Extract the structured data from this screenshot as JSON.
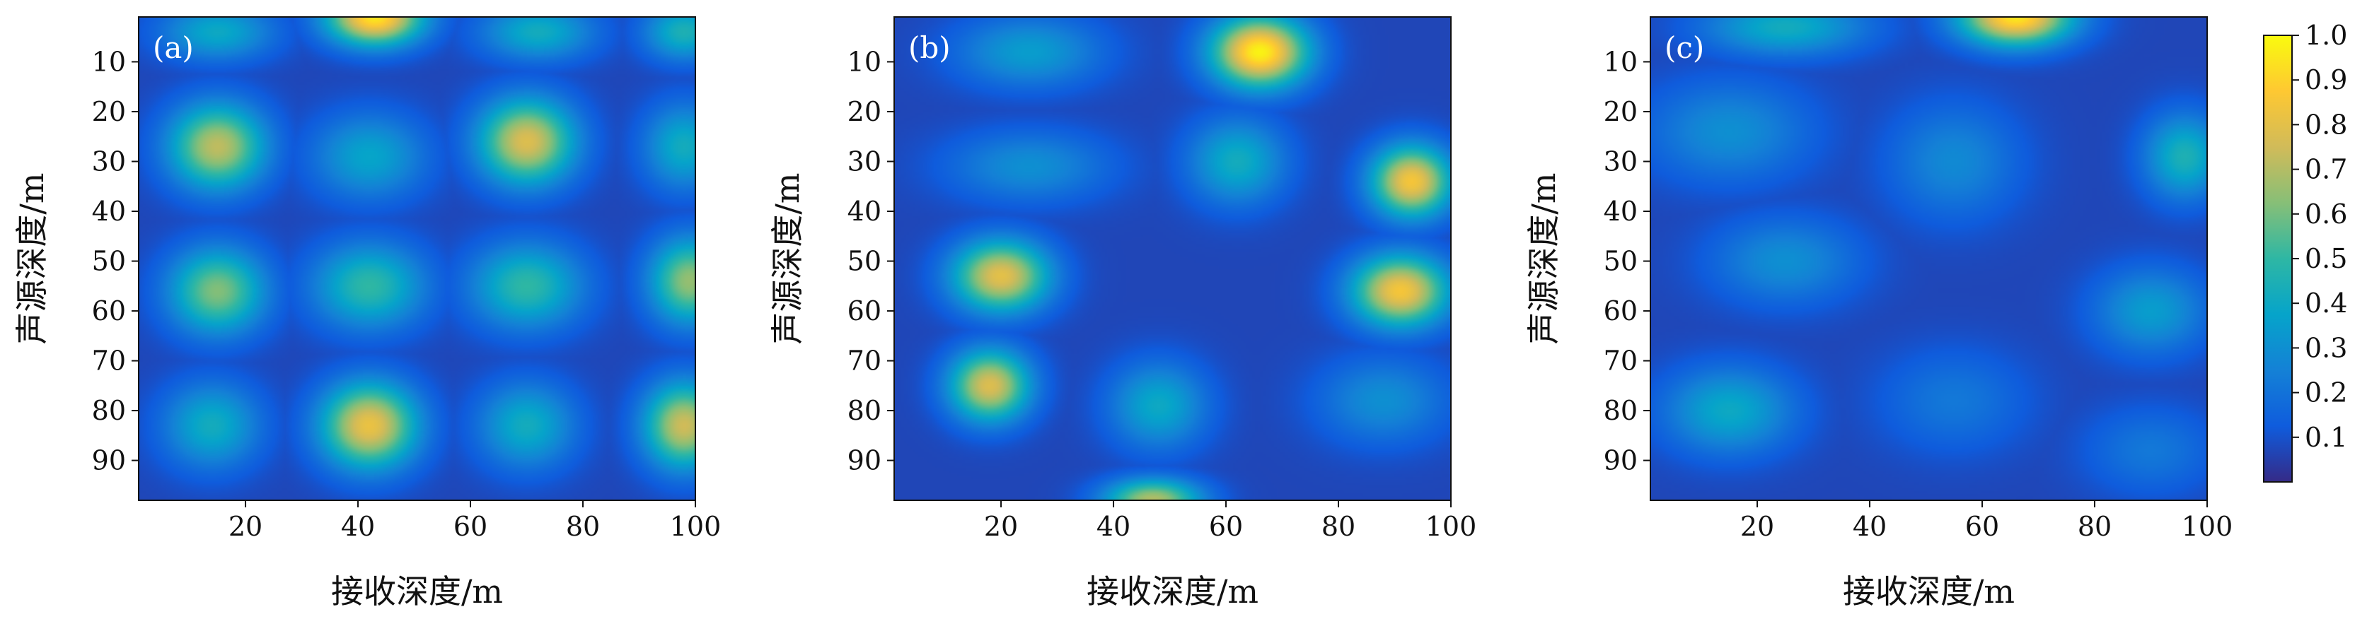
{
  "chart_data": [
    {
      "type": "heatmap",
      "panel_label": "(a)",
      "xlabel": "接收深度/m",
      "ylabel": "声源深度/m",
      "xlim": [
        1,
        100
      ],
      "ylim": [
        1,
        98
      ],
      "xticks": [
        20,
        40,
        60,
        80,
        100
      ],
      "yticks": [
        10,
        20,
        30,
        40,
        50,
        60,
        70,
        80,
        90
      ],
      "peaks": [
        {
          "x": 43,
          "y": 1,
          "v": 0.95,
          "sx": 6,
          "sy": 4
        },
        {
          "x": 15,
          "y": 27,
          "v": 0.72,
          "sx": 6,
          "sy": 6
        },
        {
          "x": 42,
          "y": 29,
          "v": 0.38,
          "sx": 7,
          "sy": 6
        },
        {
          "x": 70,
          "y": 26,
          "v": 0.78,
          "sx": 6,
          "sy": 6
        },
        {
          "x": 98,
          "y": 27,
          "v": 0.42,
          "sx": 5,
          "sy": 6
        },
        {
          "x": 15,
          "y": 56,
          "v": 0.62,
          "sx": 6,
          "sy": 6
        },
        {
          "x": 42,
          "y": 55,
          "v": 0.5,
          "sx": 7,
          "sy": 6
        },
        {
          "x": 70,
          "y": 55,
          "v": 0.5,
          "sx": 7,
          "sy": 6
        },
        {
          "x": 99,
          "y": 54,
          "v": 0.65,
          "sx": 5,
          "sy": 6
        },
        {
          "x": 14,
          "y": 83,
          "v": 0.42,
          "sx": 6,
          "sy": 6
        },
        {
          "x": 42,
          "y": 83,
          "v": 0.82,
          "sx": 6,
          "sy": 6
        },
        {
          "x": 70,
          "y": 83,
          "v": 0.42,
          "sx": 6,
          "sy": 6
        },
        {
          "x": 98,
          "y": 83,
          "v": 0.75,
          "sx": 5,
          "sy": 6
        },
        {
          "x": 15,
          "y": 4,
          "v": 0.4,
          "sx": 7,
          "sy": 4
        },
        {
          "x": 72,
          "y": 4,
          "v": 0.42,
          "sx": 7,
          "sy": 4
        },
        {
          "x": 98,
          "y": 4,
          "v": 0.45,
          "sx": 5,
          "sy": 4
        }
      ]
    },
    {
      "type": "heatmap",
      "panel_label": "(b)",
      "xlabel": "接收深度/m",
      "ylabel": "声源深度/m",
      "xlim": [
        1,
        100
      ],
      "ylim": [
        1,
        98
      ],
      "xticks": [
        20,
        40,
        60,
        80,
        100
      ],
      "yticks": [
        10,
        20,
        30,
        40,
        50,
        60,
        70,
        80,
        90
      ],
      "peaks": [
        {
          "x": 66,
          "y": 8,
          "v": 0.98,
          "sx": 6,
          "sy": 5
        },
        {
          "x": 25,
          "y": 8,
          "v": 0.35,
          "sx": 9,
          "sy": 5
        },
        {
          "x": 93,
          "y": 34,
          "v": 0.85,
          "sx": 5,
          "sy": 5
        },
        {
          "x": 62,
          "y": 30,
          "v": 0.42,
          "sx": 6,
          "sy": 6
        },
        {
          "x": 25,
          "y": 31,
          "v": 0.3,
          "sx": 10,
          "sy": 5
        },
        {
          "x": 20,
          "y": 53,
          "v": 0.8,
          "sx": 6,
          "sy": 5
        },
        {
          "x": 91,
          "y": 56,
          "v": 0.85,
          "sx": 6,
          "sy": 5
        },
        {
          "x": 18,
          "y": 75,
          "v": 0.78,
          "sx": 5,
          "sy": 5
        },
        {
          "x": 48,
          "y": 79,
          "v": 0.4,
          "sx": 6,
          "sy": 6
        },
        {
          "x": 47,
          "y": 98,
          "v": 0.7,
          "sx": 6,
          "sy": 3
        },
        {
          "x": 88,
          "y": 78,
          "v": 0.3,
          "sx": 8,
          "sy": 6
        }
      ]
    },
    {
      "type": "heatmap",
      "panel_label": "(c)",
      "xlabel": "接收深度/m",
      "ylabel": "声源深度/m",
      "xlim": [
        1,
        100
      ],
      "ylim": [
        1,
        98
      ],
      "xticks": [
        20,
        40,
        60,
        80,
        100
      ],
      "yticks": [
        10,
        20,
        30,
        40,
        50,
        60,
        70,
        80,
        90
      ],
      "peaks": [
        {
          "x": 66,
          "y": 1,
          "v": 0.95,
          "sx": 7,
          "sy": 4
        },
        {
          "x": 25,
          "y": 3,
          "v": 0.42,
          "sx": 10,
          "sy": 4
        },
        {
          "x": 96,
          "y": 29,
          "v": 0.45,
          "sx": 5,
          "sy": 6
        },
        {
          "x": 15,
          "y": 24,
          "v": 0.3,
          "sx": 10,
          "sy": 7
        },
        {
          "x": 55,
          "y": 30,
          "v": 0.28,
          "sx": 8,
          "sy": 8
        },
        {
          "x": 25,
          "y": 50,
          "v": 0.3,
          "sx": 9,
          "sy": 6
        },
        {
          "x": 90,
          "y": 60,
          "v": 0.35,
          "sx": 7,
          "sy": 6
        },
        {
          "x": 15,
          "y": 80,
          "v": 0.4,
          "sx": 8,
          "sy": 6
        },
        {
          "x": 55,
          "y": 78,
          "v": 0.22,
          "sx": 9,
          "sy": 7
        },
        {
          "x": 90,
          "y": 88,
          "v": 0.22,
          "sx": 8,
          "sy": 6
        }
      ]
    }
  ],
  "colorbar": {
    "min": 0.0,
    "max": 1.0,
    "ticks": [
      "0.1",
      "0.2",
      "0.3",
      "0.4",
      "0.5",
      "0.6",
      "0.7",
      "0.8",
      "0.9",
      "1.0"
    ],
    "colormap": [
      "#352a87",
      "#0f5cdd",
      "#1481d6",
      "#06a4ca",
      "#2eb7a4",
      "#87bf77",
      "#d1bb59",
      "#fec832",
      "#f9fb0e"
    ]
  }
}
